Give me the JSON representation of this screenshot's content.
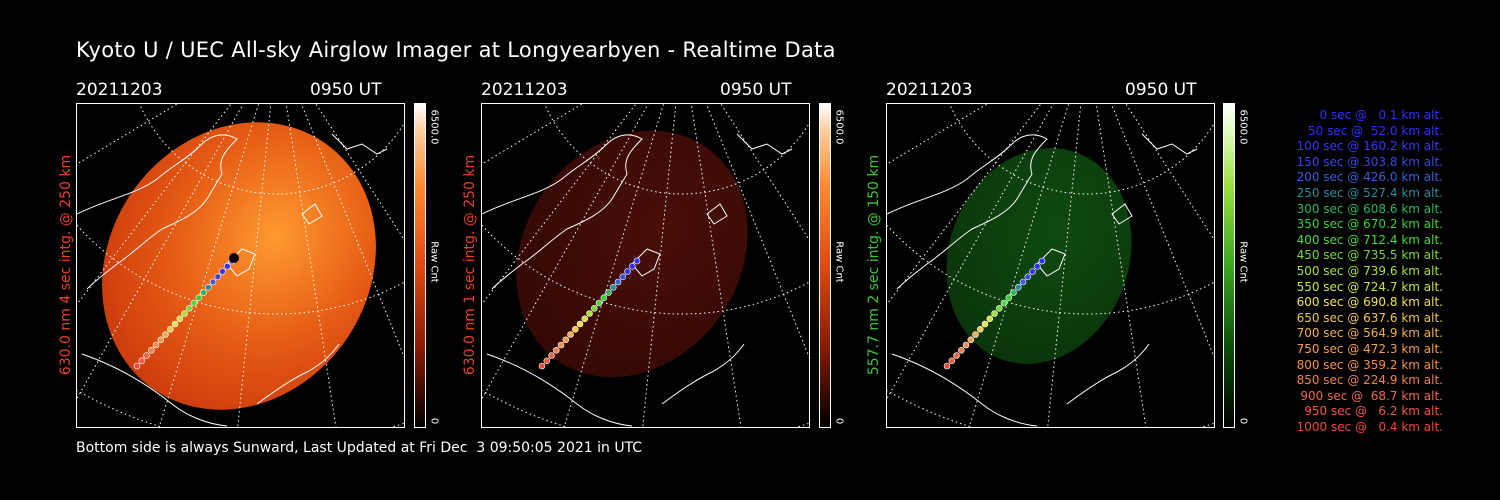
{
  "title": "Kyoto U / UEC All-sky Airglow Imager at Longyearbyen - Realtime Data",
  "panels": [
    {
      "date": "20211203",
      "ut": "0950 UT",
      "side_label": "630.0 nm 4 sec intg. @ 250 km",
      "label_color": "#e8402a",
      "cbar_max": "6500.0",
      "cbar_unit": "Raw Cnt",
      "cbar_min": "0",
      "colormap": "red-bright"
    },
    {
      "date": "20211203",
      "ut": "0950 UT",
      "side_label": "630.0 nm 1 sec intg. @ 250 km",
      "label_color": "#e8402a",
      "cbar_max": "6500.0",
      "cbar_unit": "Raw Cnt",
      "cbar_min": "0",
      "colormap": "red-dim"
    },
    {
      "date": "20211203",
      "ut": "0950 UT",
      "side_label": "557.7 nm 2 sec intg. @ 150 km",
      "label_color": "#3ec43e",
      "cbar_max": "6500.0",
      "cbar_unit": "Raw Cnt",
      "cbar_min": "0",
      "colormap": "green"
    }
  ],
  "legend": [
    {
      "text": "0 sec @   0.1 km alt.",
      "color": "#3030ff"
    },
    {
      "text": "50 sec @  52.0 km alt.",
      "color": "#3030ff"
    },
    {
      "text": "100 sec @ 160.2 km alt.",
      "color": "#3838f0"
    },
    {
      "text": "150 sec @ 303.8 km alt.",
      "color": "#3a48e0"
    },
    {
      "text": "200 sec @ 426.0 km alt.",
      "color": "#3a60d8"
    },
    {
      "text": "250 sec @ 527.4 km alt.",
      "color": "#2a8aa0"
    },
    {
      "text": "300 sec @ 608.6 km alt.",
      "color": "#2ab860"
    },
    {
      "text": "350 sec @ 670.2 km alt.",
      "color": "#3ad03a"
    },
    {
      "text": "400 sec @ 712.4 km alt.",
      "color": "#4ad83a"
    },
    {
      "text": "450 sec @ 735.5 km alt.",
      "color": "#7ad83a"
    },
    {
      "text": "500 sec @ 739.6 km alt.",
      "color": "#a8e03a"
    },
    {
      "text": "550 sec @ 724.7 km alt.",
      "color": "#d0e040"
    },
    {
      "text": "600 sec @ 690.8 km alt.",
      "color": "#f0e050"
    },
    {
      "text": "650 sec @ 637.6 km alt.",
      "color": "#f0c850"
    },
    {
      "text": "700 sec @ 564.9 km alt.",
      "color": "#f0b050"
    },
    {
      "text": "750 sec @ 472.3 km alt.",
      "color": "#f0a050"
    },
    {
      "text": "800 sec @ 359.2 km alt.",
      "color": "#f09050"
    },
    {
      "text": "850 sec @ 224.9 km alt.",
      "color": "#f08050"
    },
    {
      "text": "900 sec @  68.7 km alt.",
      "color": "#f06848"
    },
    {
      "text": "950 sec @   6.2 km alt.",
      "color": "#f05840"
    },
    {
      "text": "1000 sec @   0.4 km alt.",
      "color": "#f04838"
    }
  ],
  "footer": "Bottom side is always Sunward, Last Updated at Fri Dec  3 09:50:05 2021 in UTC"
}
